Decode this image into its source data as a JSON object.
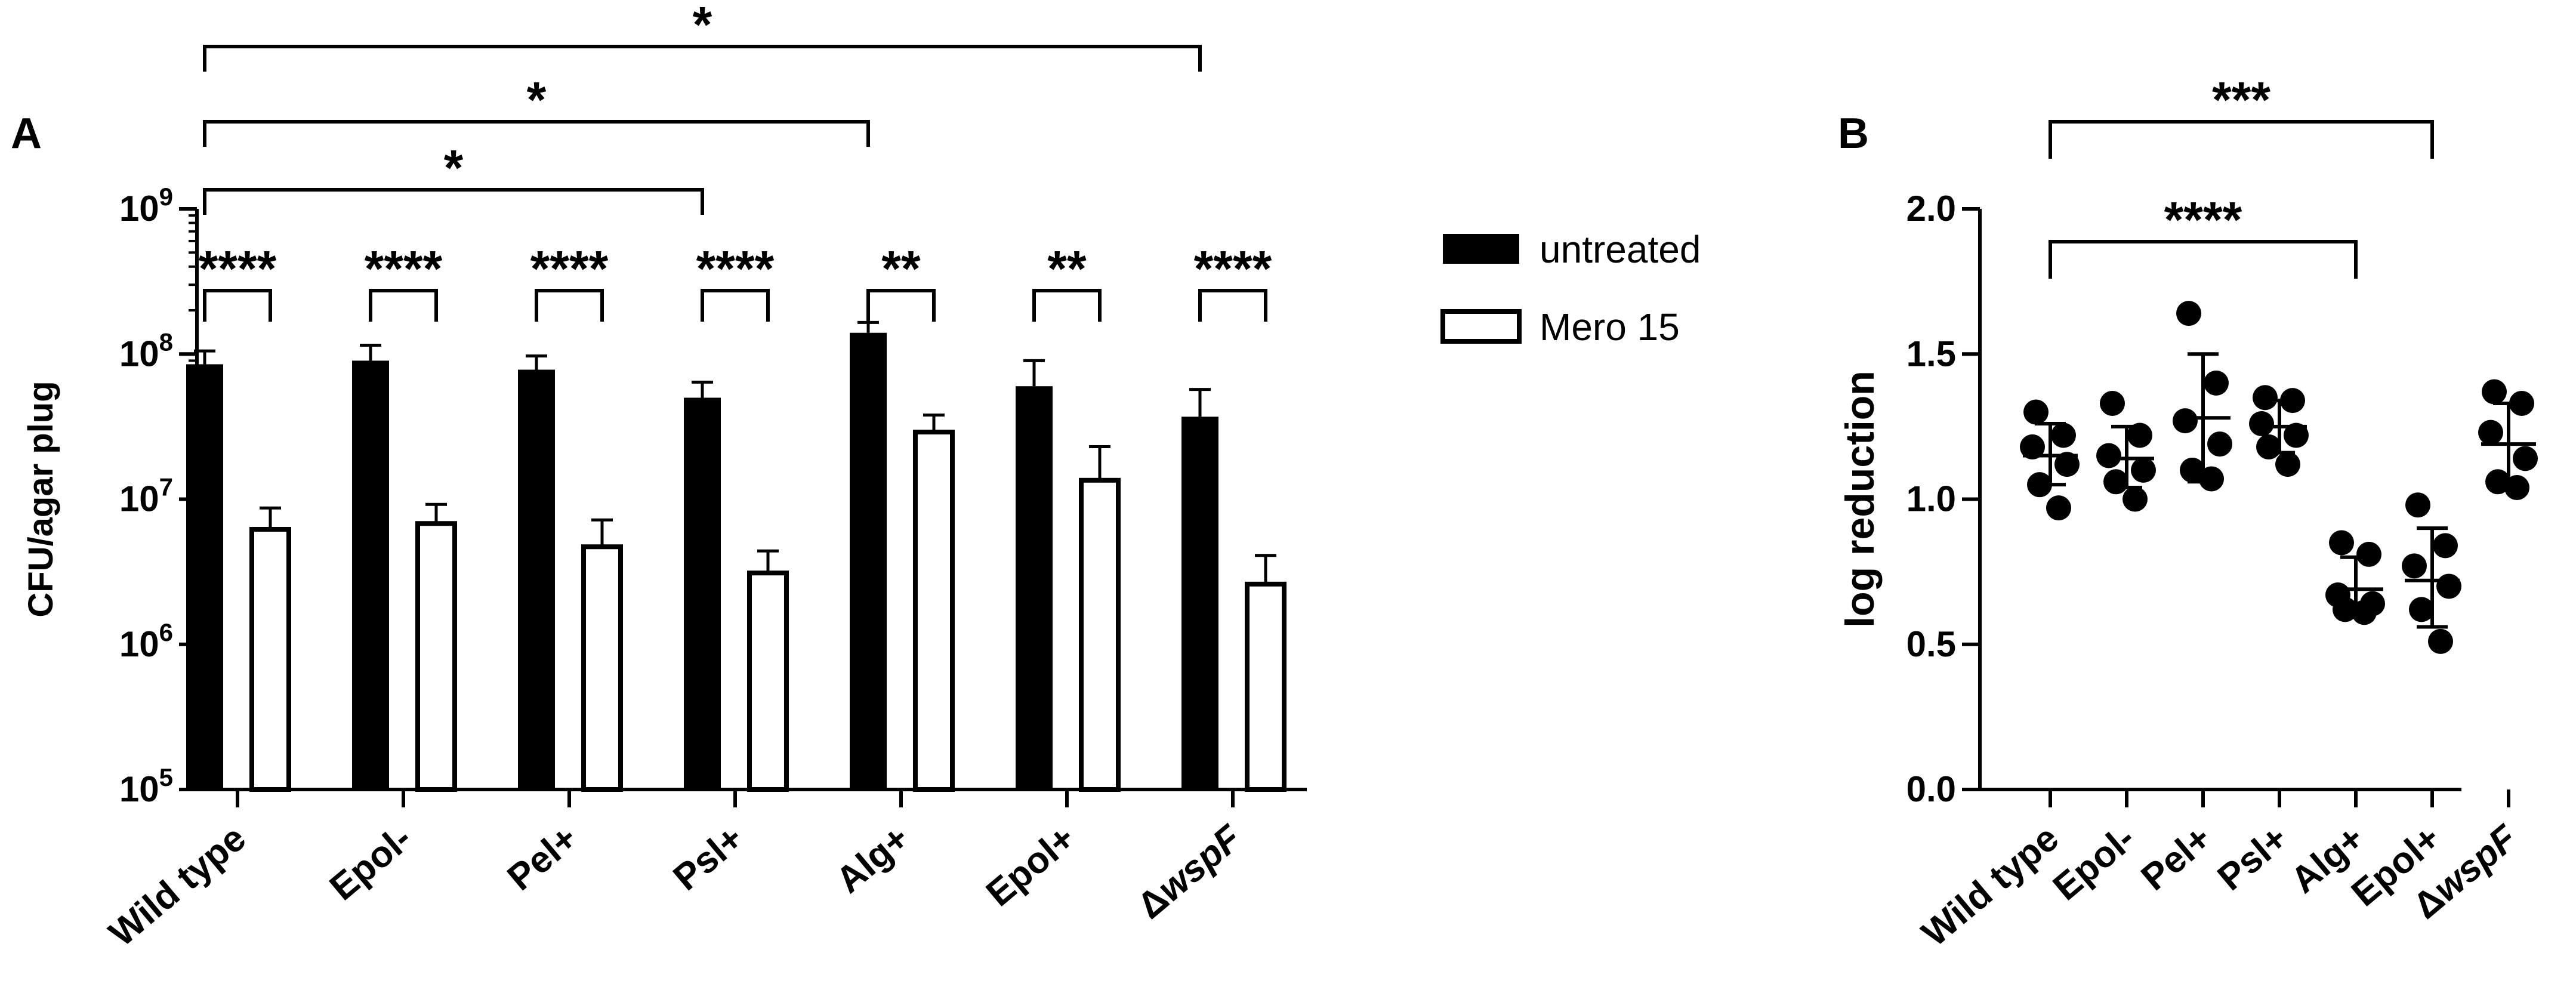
{
  "chart_data": [
    {
      "panel": "A",
      "type": "bar",
      "ylabel": "CFU/agar plug",
      "yscale": "log",
      "ylim": [
        100000,
        1000000000
      ],
      "y_ticks": [
        {
          "value": 100000,
          "base": "10",
          "exp": "5"
        },
        {
          "value": 1000000,
          "base": "10",
          "exp": "6"
        },
        {
          "value": 10000000,
          "base": "10",
          "exp": "7"
        },
        {
          "value": 100000000,
          "base": "10",
          "exp": "8"
        },
        {
          "value": 1000000000,
          "base": "10",
          "exp": "9"
        }
      ],
      "categories": [
        {
          "label": "Wild type",
          "italic_suffix": ""
        },
        {
          "label": "Epol-",
          "italic_suffix": ""
        },
        {
          "label": "Pel+",
          "italic_suffix": ""
        },
        {
          "label": "Psl+",
          "italic_suffix": ""
        },
        {
          "label": "Alg+",
          "italic_suffix": ""
        },
        {
          "label": "Epol+",
          "italic_suffix": ""
        },
        {
          "label": "Δ",
          "italic_suffix": "wspF"
        }
      ],
      "legend_position": "right",
      "series": [
        {
          "name": "untreated",
          "color": "#000000",
          "fill": "solid",
          "values": [
            85000000,
            90000000,
            78000000,
            50000000,
            140000000,
            60000000,
            37000000
          ],
          "error_upper": [
            105000000,
            115000000,
            97000000,
            64000000,
            165000000,
            90000000,
            57000000
          ]
        },
        {
          "name": "Mero 15",
          "color": "#000000",
          "fill": "open",
          "values": [
            6200000,
            6800000,
            4700000,
            3100000,
            29000000,
            13500000,
            2600000
          ],
          "error_upper": [
            8700000,
            9200000,
            7200000,
            4400000,
            38000000,
            23000000,
            4100000
          ]
        }
      ],
      "within_group_significance": [
        "****",
        "****",
        "****",
        "****",
        "**",
        "**",
        "****"
      ],
      "between_group_significance": [
        {
          "from": 0,
          "to": 3,
          "label": "*"
        },
        {
          "from": 0,
          "to": 4,
          "label": "*"
        },
        {
          "from": 0,
          "to": 6,
          "label": "*"
        }
      ]
    },
    {
      "panel": "B",
      "type": "scatter",
      "ylabel": "log reduction",
      "ylim": [
        0.0,
        2.0
      ],
      "y_ticks": [
        "0.0",
        "0.5",
        "1.0",
        "1.5",
        "2.0"
      ],
      "categories": [
        {
          "label": "Wild type",
          "italic_suffix": ""
        },
        {
          "label": "Epol-",
          "italic_suffix": ""
        },
        {
          "label": "Pel+",
          "italic_suffix": ""
        },
        {
          "label": "Psl+",
          "italic_suffix": ""
        },
        {
          "label": "Alg+",
          "italic_suffix": ""
        },
        {
          "label": "Epol+",
          "italic_suffix": ""
        },
        {
          "label": "Δ",
          "italic_suffix": "wspF"
        }
      ],
      "groups": [
        {
          "points": [
            1.3,
            1.22,
            1.18,
            1.12,
            1.05,
            0.97
          ],
          "mean": 1.15,
          "sd_low": 1.05,
          "sd_high": 1.26
        },
        {
          "points": [
            1.33,
            1.22,
            1.15,
            1.1,
            1.06,
            1.0
          ],
          "mean": 1.14,
          "sd_low": 1.04,
          "sd_high": 1.25
        },
        {
          "points": [
            1.64,
            1.4,
            1.27,
            1.19,
            1.1,
            1.07
          ],
          "mean": 1.28,
          "sd_low": 1.06,
          "sd_high": 1.5
        },
        {
          "points": [
            1.35,
            1.34,
            1.26,
            1.22,
            1.18,
            1.12
          ],
          "mean": 1.25,
          "sd_low": 1.16,
          "sd_high": 1.34
        },
        {
          "points": [
            0.85,
            0.81,
            0.67,
            0.64,
            0.62,
            0.61
          ],
          "mean": 0.69,
          "sd_low": 0.6,
          "sd_high": 0.8
        },
        {
          "points": [
            0.98,
            0.84,
            0.77,
            0.7,
            0.62,
            0.51
          ],
          "mean": 0.72,
          "sd_low": 0.56,
          "sd_high": 0.9
        },
        {
          "points": [
            1.37,
            1.33,
            1.23,
            1.14,
            1.06,
            1.04
          ],
          "mean": 1.19,
          "sd_low": 1.07,
          "sd_high": 1.33
        }
      ],
      "between_group_significance": [
        {
          "from": 0,
          "to": 4,
          "label": "****"
        },
        {
          "from": 0,
          "to": 5,
          "label": "***"
        }
      ]
    }
  ],
  "panels": {
    "a_label": "A",
    "b_label": "B"
  }
}
